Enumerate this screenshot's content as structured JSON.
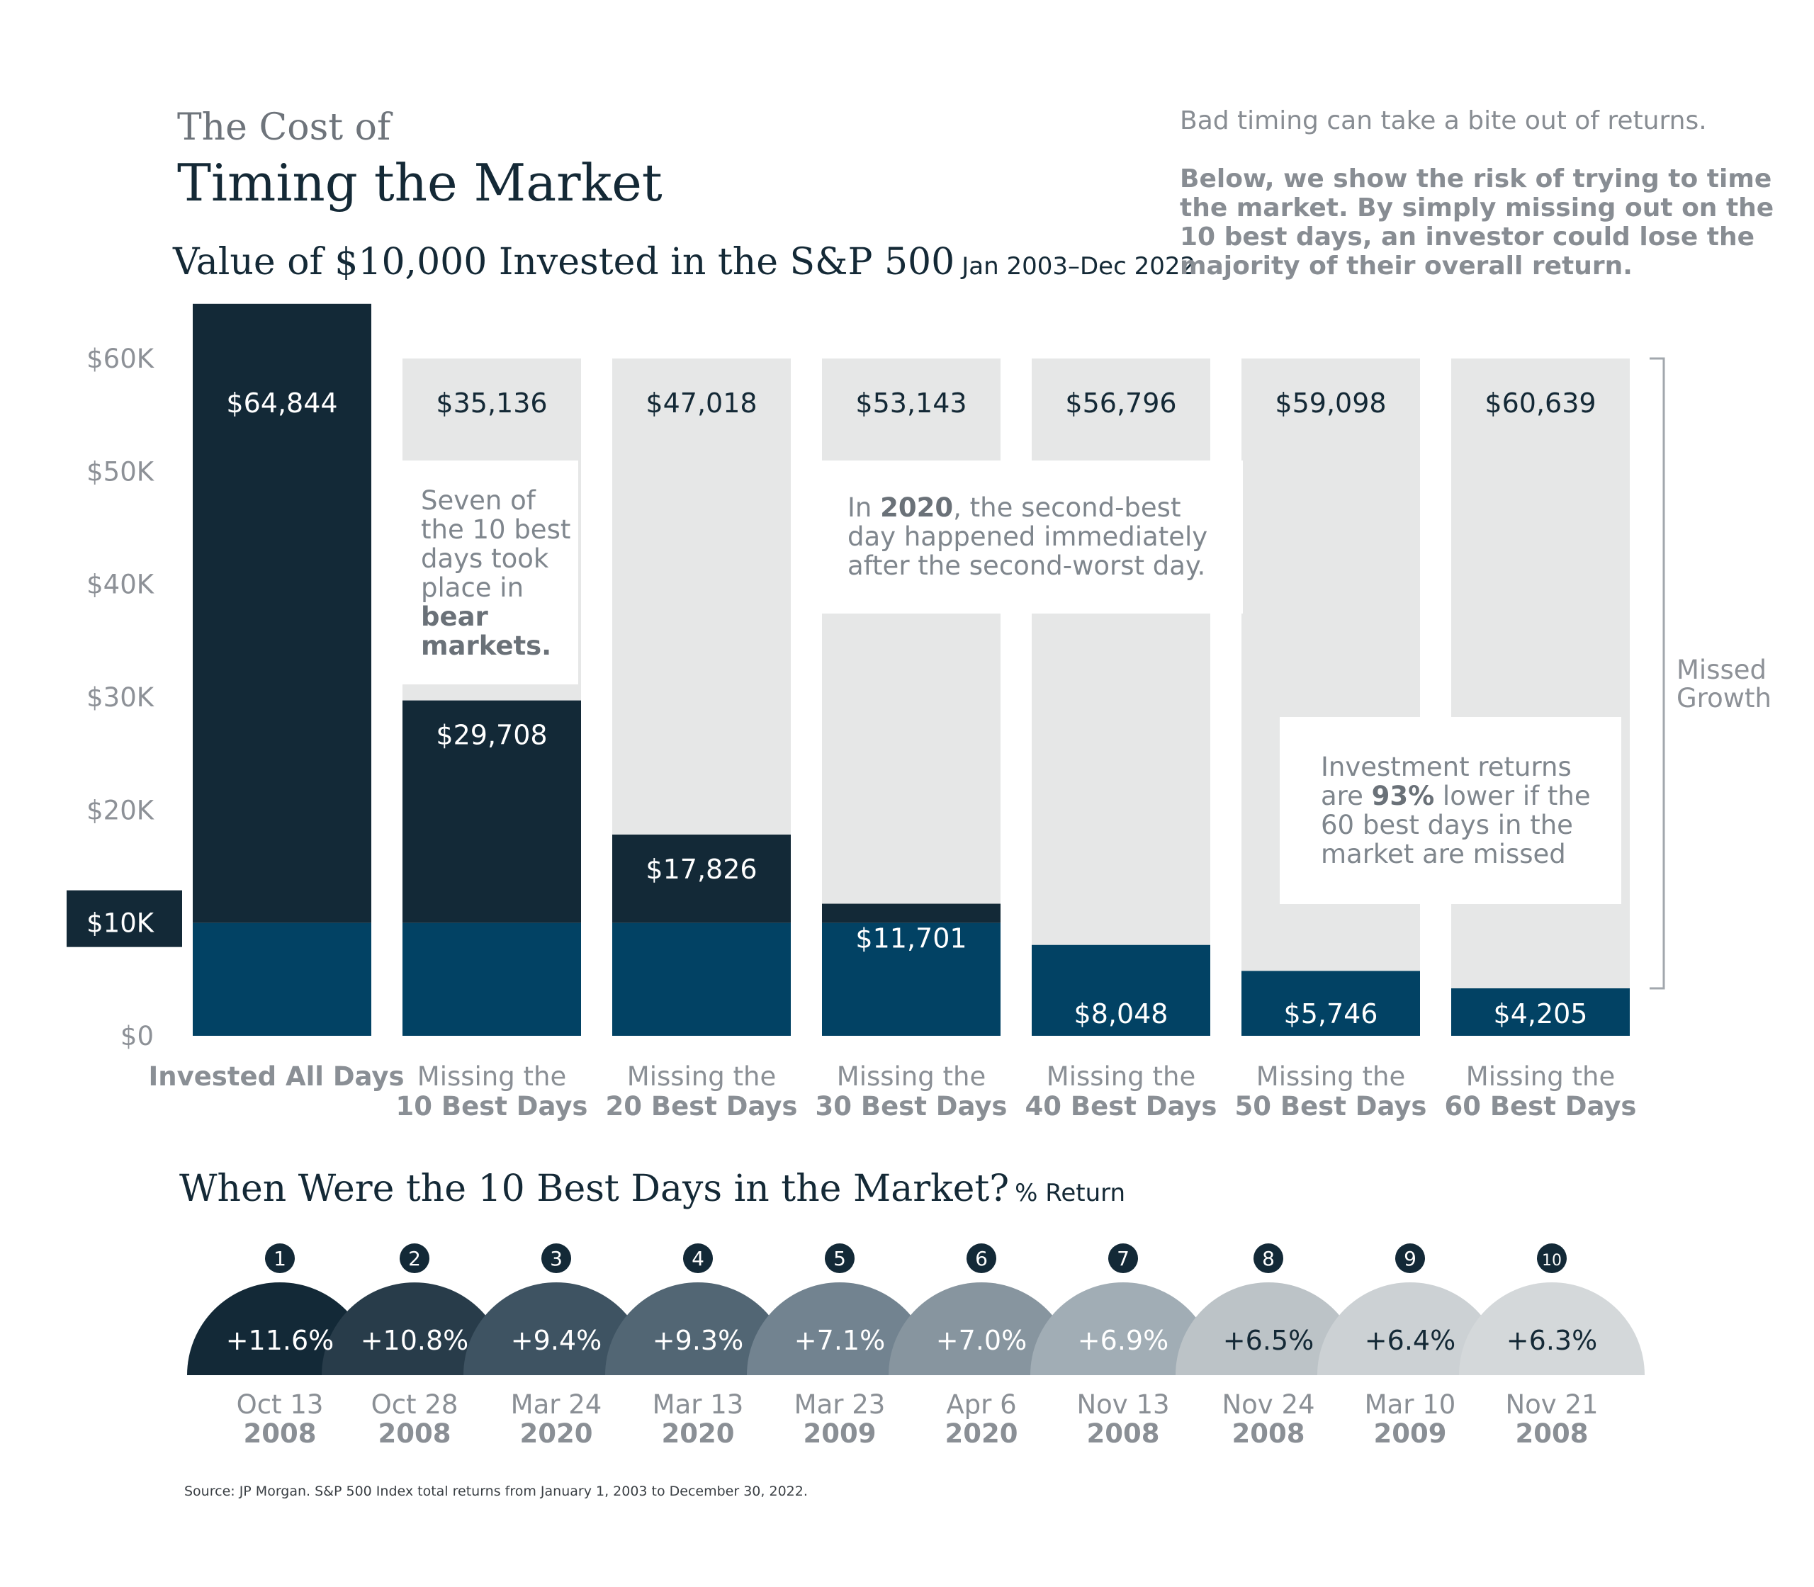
{
  "header": {
    "title_line1": "The Cost of",
    "title_line2": "Timing the Market",
    "subtitle": "Value of $10,000 Invested in the S&P 500",
    "subtitle_range": "Jan 2003–Dec 2022"
  },
  "intro": {
    "lead": "Bad timing can take a bite out of returns.",
    "body": "Below, we show the risk of trying to time the market. By simply missing out on the 10 best days, an investor could lose the majority of their overall return."
  },
  "colors": {
    "dark_navy": "#132937",
    "teal": "#024264",
    "light_gray": "#e6e7e7",
    "axis_text": "#8d9197",
    "label_text": "#8a8f95"
  },
  "chart_data": [
    {
      "type": "bar",
      "categories": [
        {
          "line1": "Invested All Days",
          "line2": ""
        },
        {
          "line1": "Missing the",
          "line2": "10 Best Days"
        },
        {
          "line1": "Missing the",
          "line2": "20 Best Days"
        },
        {
          "line1": "Missing the",
          "line2": "30 Best Days"
        },
        {
          "line1": "Missing the",
          "line2": "40 Best Days"
        },
        {
          "line1": "Missing the",
          "line2": "50 Best Days"
        },
        {
          "line1": "Missing the",
          "line2": "60 Best Days"
        }
      ],
      "values": [
        64844,
        29708,
        17826,
        11701,
        8048,
        5746,
        4205
      ],
      "top_labels": [
        "$64,844",
        "$35,136",
        "$47,018",
        "$53,143",
        "$56,796",
        "$59,098",
        "$60,639"
      ],
      "value_labels": [
        "",
        "$29,708",
        "$17,826",
        "$11,701",
        "$8,048",
        "$5,746",
        "$4,205"
      ],
      "initial_investment": 10000,
      "y_ticks": [
        {
          "value": 0,
          "label": "$0"
        },
        {
          "value": 10000,
          "label": "$10K"
        },
        {
          "value": 20000,
          "label": "$20K"
        },
        {
          "value": 30000,
          "label": "$30K"
        },
        {
          "value": 40000,
          "label": "$40K"
        },
        {
          "value": 50000,
          "label": "$50K"
        },
        {
          "value": 60000,
          "label": "$60K"
        }
      ],
      "ylim": [
        0,
        60000
      ],
      "bracket_label_line1": "Missed",
      "bracket_label_line2": "Growth",
      "annotations": {
        "bear_markets": {
          "pre": "Seven of the 10 best days took place in ",
          "bold": "bear markets."
        },
        "covid": {
          "pre": "In ",
          "bold": "2020",
          "post": ", the second-best day happened immediately after the second-worst day."
        },
        "sixty_days": {
          "pre": "Investment returns are ",
          "bold": "93%",
          "post": " lower if the 60 best days in the market are missed"
        }
      }
    },
    {
      "type": "other",
      "title": "When Were the 10 Best Days in the Market?",
      "unit": "% Return",
      "ranks": [
        1,
        2,
        3,
        4,
        5,
        6,
        7,
        8,
        9,
        10
      ],
      "values": [
        11.6,
        10.8,
        9.4,
        9.3,
        7.1,
        7.0,
        6.9,
        6.5,
        6.4,
        6.3
      ],
      "labels": [
        "+11.6%",
        "+10.8%",
        "+9.4%",
        "+9.3%",
        "+7.1%",
        "+7.0%",
        "+6.9%",
        "+6.5%",
        "+6.4%",
        "+6.3%"
      ],
      "dates": [
        {
          "month_day": "Oct 13",
          "year": "2008"
        },
        {
          "month_day": "Oct 28",
          "year": "2008"
        },
        {
          "month_day": "Mar 24",
          "year": "2020"
        },
        {
          "month_day": "Mar 13",
          "year": "2020"
        },
        {
          "month_day": "Mar 23",
          "year": "2009"
        },
        {
          "month_day": "Apr 6",
          "year": "2020"
        },
        {
          "month_day": "Nov 13",
          "year": "2008"
        },
        {
          "month_day": "Nov 24",
          "year": "2008"
        },
        {
          "month_day": "Mar 10",
          "year": "2009"
        },
        {
          "month_day": "Nov 21",
          "year": "2008"
        }
      ],
      "colors": [
        "#132937",
        "#283c4a",
        "#3e5362",
        "#526674",
        "#728390",
        "#87959f",
        "#a1adb5",
        "#bcc3c7",
        "#ccd1d4",
        "#d4d8da"
      ],
      "text_colors": [
        "#ffffff",
        "#ffffff",
        "#ffffff",
        "#ffffff",
        "#ffffff",
        "#ffffff",
        "#ffffff",
        "#142936",
        "#142936",
        "#142936"
      ]
    }
  ],
  "source": "Source: JP Morgan. S&P 500 Index total returns from January 1, 2003 to December 30, 2022."
}
